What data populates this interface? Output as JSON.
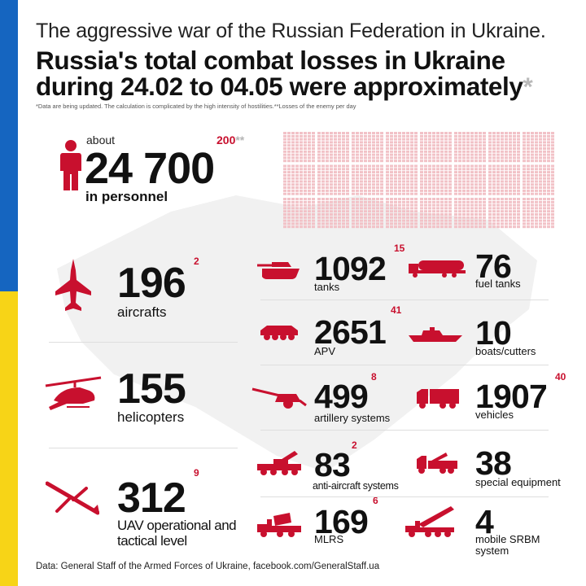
{
  "header": {
    "line1": "The aggressive war of the Russian Federation in Ukraine.",
    "line2a": "Russia's total combat losses in Ukraine",
    "line2b": "during 24.02 to 04.05 were approximately",
    "star": "*",
    "note": "*Data are being updated. The calculation is complicated by the high intensity of hostilities.**Losses of the enemy per day"
  },
  "personnel": {
    "about": "about",
    "value": "24 700",
    "daily": "200",
    "daily_star": "**",
    "label": "in personnel"
  },
  "items": {
    "aircrafts": {
      "value": "196",
      "daily": "2",
      "label": "aircrafts"
    },
    "helicopters": {
      "value": "155",
      "daily": "",
      "label": "helicopters"
    },
    "uav": {
      "value": "312",
      "daily": "9",
      "label": "UAV operational and tactical level"
    },
    "tanks": {
      "value": "1092",
      "daily": "15",
      "label": "tanks"
    },
    "apv": {
      "value": "2651",
      "daily": "41",
      "label": "APV"
    },
    "artillery": {
      "value": "499",
      "daily": "8",
      "label": "artillery systems"
    },
    "antiair": {
      "value": "83",
      "daily": "2",
      "label": "anti-aircraft systems"
    },
    "mlrs": {
      "value": "169",
      "daily": "6",
      "label": "MLRS"
    },
    "fuel": {
      "value": "76",
      "daily": "",
      "label": "fuel tanks"
    },
    "boats": {
      "value": "10",
      "daily": "",
      "label": "boats/cutters"
    },
    "vehicles": {
      "value": "1907",
      "daily": "40",
      "label": "vehicles"
    },
    "special": {
      "value": "38",
      "daily": "",
      "label": "special equipment"
    },
    "srbm": {
      "value": "4",
      "daily": "",
      "label": "mobile SRBM system"
    }
  },
  "source": "Data: General Staff of the Armed Forces of Ukraine, facebook.com/GeneralStaff.ua",
  "colors": {
    "accent": "#c8102e",
    "grid": "#f2c2c7",
    "flag_blue": "#1565c0",
    "flag_yellow": "#f7d417"
  }
}
